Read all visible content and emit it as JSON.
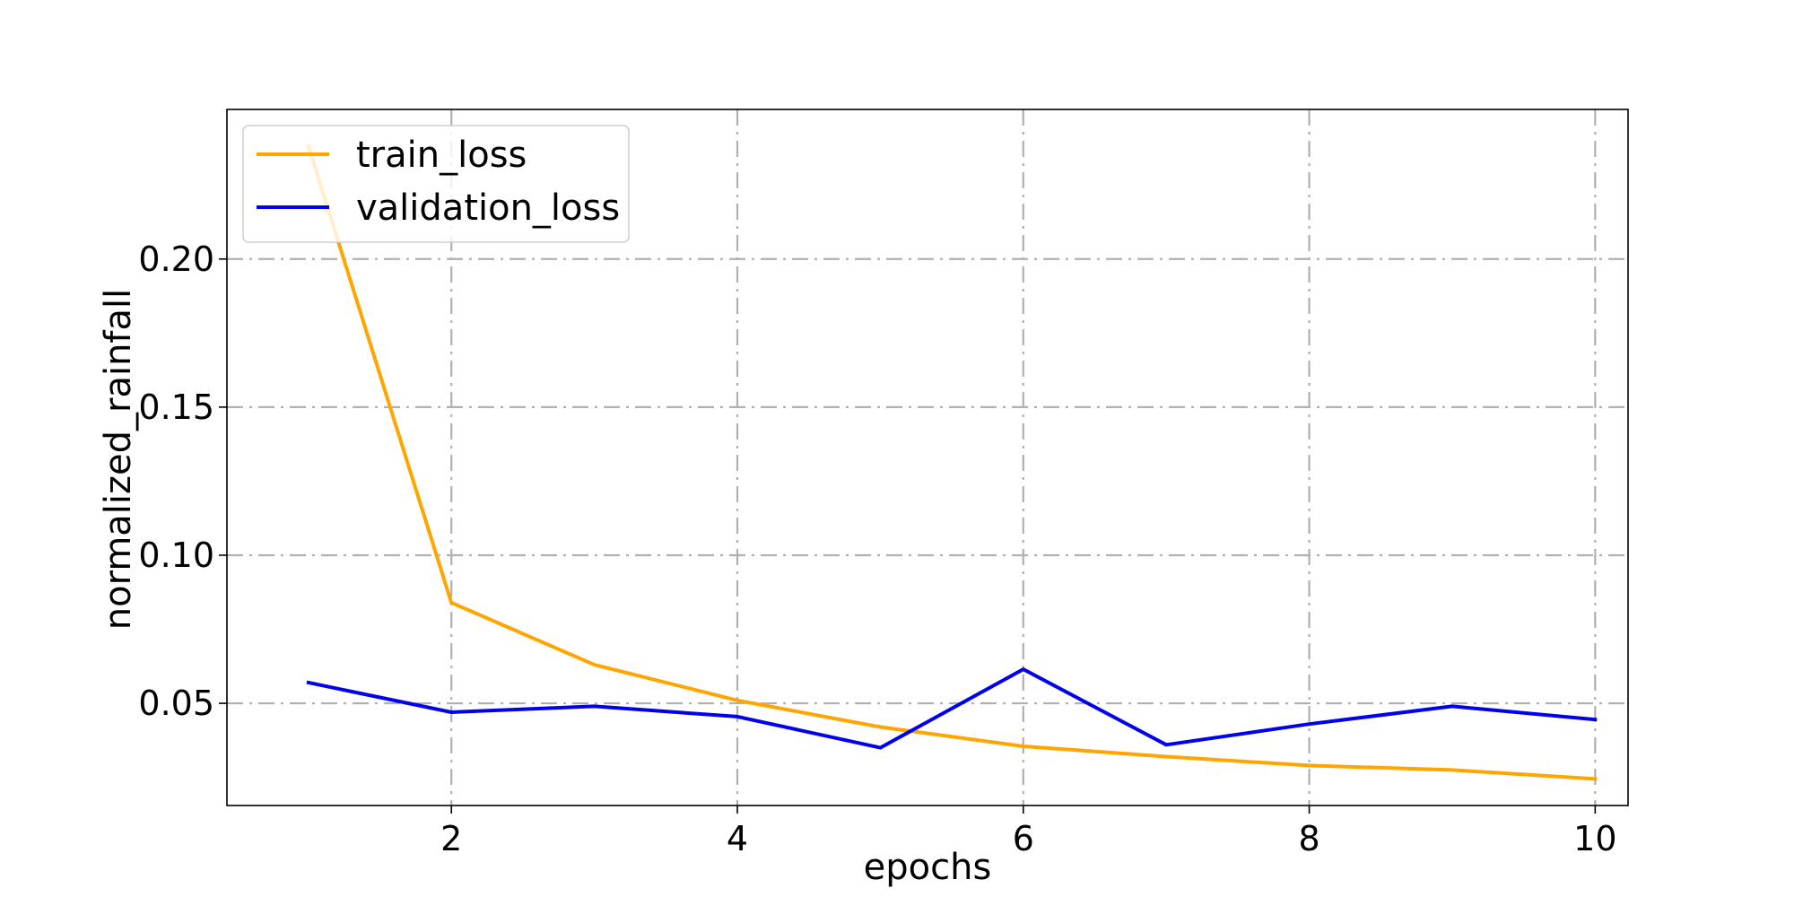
{
  "chart_data": {
    "type": "line",
    "title": "",
    "xlabel": "epochs",
    "ylabel": "normalized_rainfall",
    "x": [
      1,
      2,
      3,
      4,
      5,
      6,
      7,
      8,
      9,
      10
    ],
    "series": [
      {
        "name": "train_loss",
        "color": "#ffa500",
        "values": [
          0.238,
          0.084,
          0.063,
          0.051,
          0.042,
          0.0355,
          0.032,
          0.029,
          0.0275,
          0.0245
        ]
      },
      {
        "name": "validation_loss",
        "color": "#0000ee",
        "values": [
          0.057,
          0.047,
          0.049,
          0.0455,
          0.035,
          0.0615,
          0.036,
          0.043,
          0.049,
          0.0445
        ]
      }
    ],
    "xlim": [
      0.43,
      10.23
    ],
    "ylim": [
      0.0155,
      0.2505
    ],
    "xticks": [
      2,
      4,
      6,
      8,
      10
    ],
    "xtick_labels": [
      "2",
      "4",
      "6",
      "8",
      "10"
    ],
    "yticks": [
      0.05,
      0.1,
      0.15,
      0.2
    ],
    "ytick_labels": [
      "0.05",
      "0.10",
      "0.15",
      "0.20"
    ],
    "grid": true,
    "legend_position": "upper-left"
  }
}
